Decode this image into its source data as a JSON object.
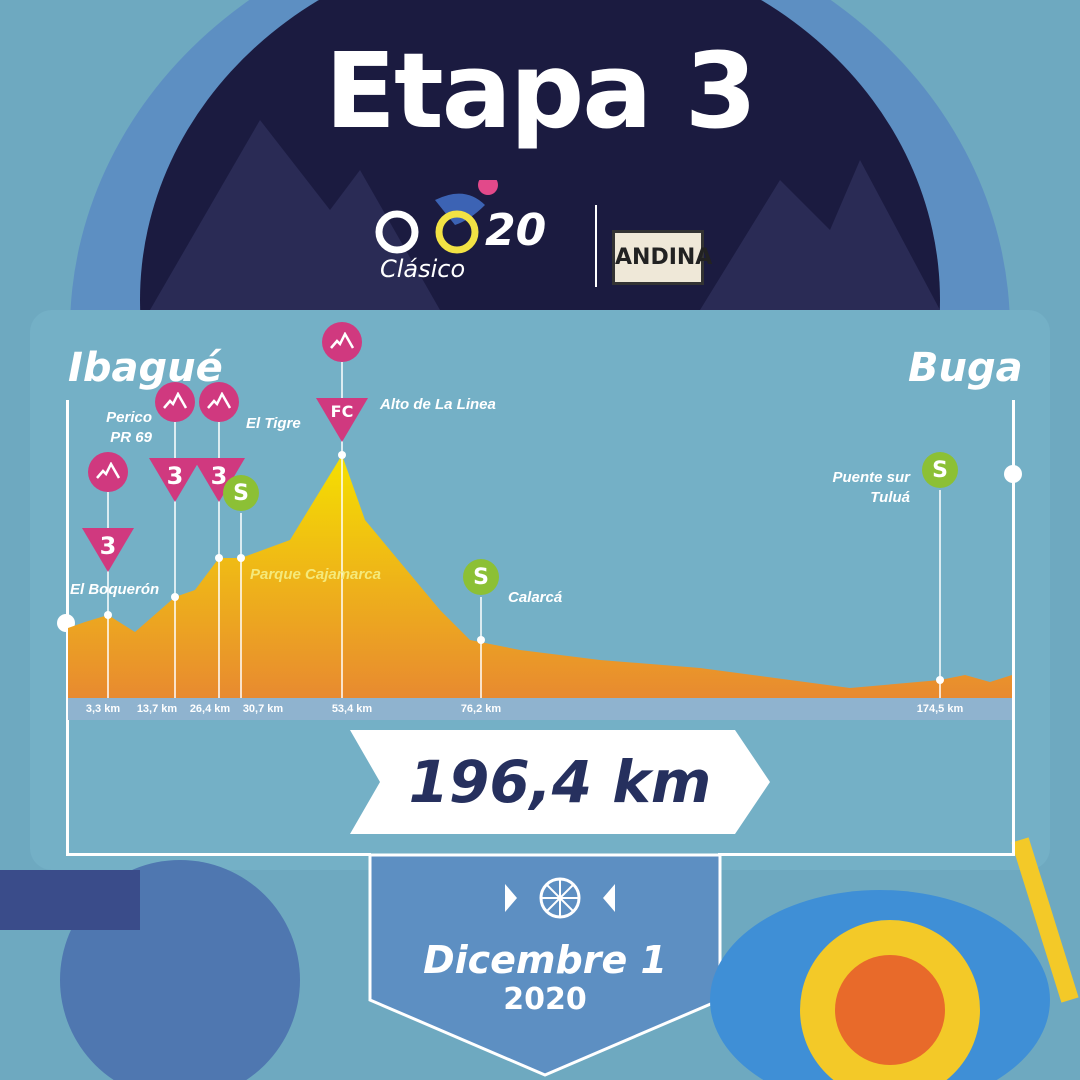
{
  "title": "Etapa 3",
  "logos": {
    "event": "Clásico RCN 2020",
    "event_number": "20",
    "event_word": "Clásico",
    "sponsor": "ANDINA"
  },
  "route": {
    "start": "Ibagué",
    "finish": "Buga",
    "distance": "196,4 km"
  },
  "markers": [
    {
      "name": "El Boquerón",
      "km": "3,3 km",
      "type": "mountain",
      "category": "3"
    },
    {
      "name": "Perico PR 69",
      "km": "13,7 km",
      "type": "mountain",
      "category": "3"
    },
    {
      "name": "El Tigre",
      "km": "26,4 km",
      "type": "mountain",
      "category": "3"
    },
    {
      "name": "Parque Cajamarca",
      "km": "30,7 km",
      "type": "sprint",
      "category": "S"
    },
    {
      "name": "Alto de La Linea",
      "km": "53,4 km",
      "type": "mountain",
      "category": "FC"
    },
    {
      "name": "Calarcá",
      "km": "76,2 km",
      "type": "sprint",
      "category": "S"
    },
    {
      "name": "Puente sur Tuluá",
      "km": "174,5 km",
      "type": "sprint",
      "category": "S"
    }
  ],
  "date": {
    "day": "Dicembre 1",
    "year": "2020"
  },
  "colors": {
    "mountain": "#d0397f",
    "sprint": "#8cc035",
    "navy": "#1b1b40",
    "profile_top": "#f5e000",
    "profile_bottom": "#e88a30"
  }
}
